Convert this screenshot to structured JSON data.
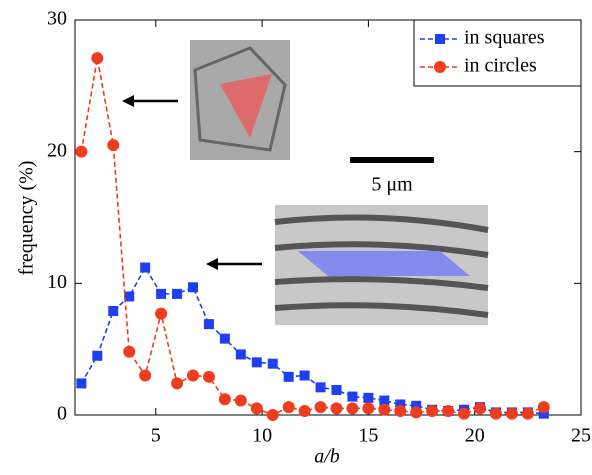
{
  "chart_data": {
    "type": "line",
    "x_label": "a/b",
    "y_label": "frequency (%)",
    "x": [
      1.5,
      2.25,
      3,
      3.75,
      4.5,
      5.25,
      6,
      6.75,
      7.5,
      8.25,
      9,
      9.75,
      10.5,
      11.25,
      12,
      12.75,
      13.5,
      14.25,
      15,
      15.75,
      16.5,
      17.25,
      18,
      18.75,
      19.5,
      20.25,
      21,
      21.75,
      22.5,
      23.25
    ],
    "series": [
      {
        "name": "in squares",
        "color": "#1f3ff0",
        "marker": "square",
        "values": [
          2.4,
          4.5,
          7.9,
          9.0,
          11.2,
          9.2,
          9.2,
          9.7,
          6.9,
          5.8,
          4.6,
          4.0,
          3.9,
          2.9,
          3.0,
          2.1,
          1.9,
          1.4,
          1.3,
          1.1,
          0.8,
          0.7,
          0.4,
          0.3,
          0.4,
          0.6,
          0.2,
          0.2,
          0.2,
          0.1
        ]
      },
      {
        "name": "in circles",
        "color": "#f03c1e",
        "marker": "circle",
        "values": [
          20.0,
          27.1,
          20.5,
          4.8,
          3.0,
          7.7,
          2.4,
          3.0,
          2.9,
          1.2,
          1.1,
          0.5,
          0.0,
          0.6,
          0.3,
          0.6,
          0.5,
          0.5,
          0.5,
          0.4,
          0.3,
          0.2,
          0.3,
          0.3,
          0.1,
          0.5,
          0.1,
          0.1,
          0.1,
          0.6
        ]
      }
    ],
    "xlim": [
      1.2,
      25
    ],
    "xticks": [
      5,
      10,
      15,
      20,
      25
    ],
    "ylim": [
      0,
      30
    ],
    "yticks": [
      0,
      10,
      20,
      30
    ],
    "legend": "upper right",
    "scale_bar_label": "5 μm"
  }
}
